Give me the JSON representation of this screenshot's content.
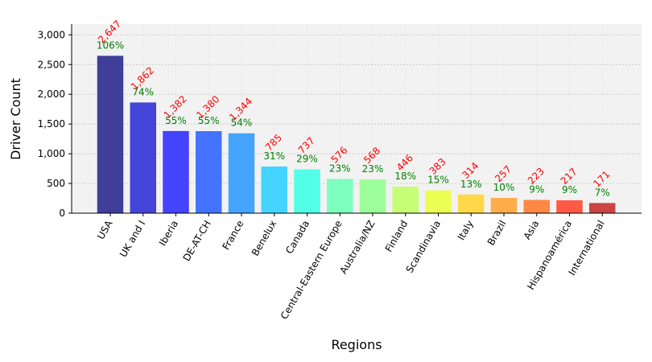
{
  "chart_data": {
    "type": "bar",
    "title": "",
    "xlabel": "Regions",
    "ylabel": "Driver Count",
    "ylim": [
      0,
      3180
    ],
    "yticks": [
      0,
      500,
      1000,
      1500,
      2000,
      2500,
      3000
    ],
    "ytick_labels": [
      "0",
      "500",
      "1,000",
      "1,500",
      "2,000",
      "2,500",
      "3,000"
    ],
    "grid": true,
    "categories": [
      "USA",
      "UK and I",
      "Iberia",
      "DE-AT-CH",
      "France",
      "Benelux",
      "Canada",
      "Central-Eastern Europe",
      "Australia/NZ",
      "Finland",
      "Scandinavia",
      "Italy",
      "Brazil",
      "Asia",
      "Hispanoamérica",
      "International"
    ],
    "values": [
      2647,
      1862,
      1382,
      1380,
      1344,
      785,
      737,
      576,
      568,
      446,
      383,
      314,
      257,
      223,
      217,
      171
    ],
    "value_labels": [
      "2,647",
      "1,862",
      "1,382",
      "1,380",
      "1,344",
      "785",
      "737",
      "576",
      "568",
      "446",
      "383",
      "314",
      "257",
      "223",
      "217",
      "171"
    ],
    "percent_labels": [
      "106%",
      "74%",
      "55%",
      "55%",
      "54%",
      "31%",
      "29%",
      "23%",
      "23%",
      "18%",
      "15%",
      "13%",
      "10%",
      "9%",
      "9%",
      "7%"
    ],
    "bar_colors": [
      "#3f3f9b",
      "#4444d8",
      "#4444ff",
      "#4474ff",
      "#44a4ff",
      "#44d4ff",
      "#52ffe6",
      "#7effbe",
      "#9dff9a",
      "#c6ff75",
      "#eaff52",
      "#ffd84a",
      "#ffac4a",
      "#ff8844",
      "#ff5a44",
      "#cc4444"
    ],
    "value_label_color": "#ff0000",
    "percent_label_color": "#008000",
    "plot_background": "#f2f2f2"
  }
}
